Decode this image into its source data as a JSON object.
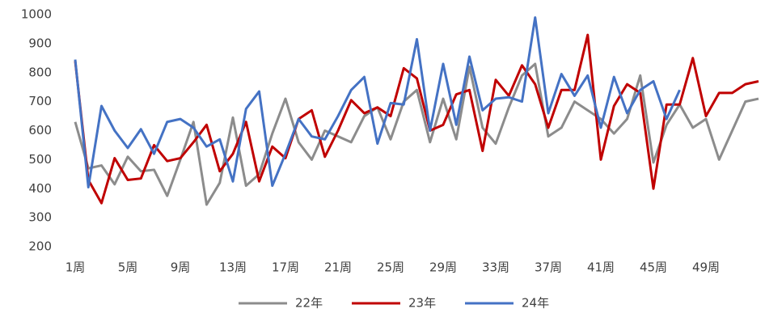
{
  "chart_data": {
    "type": "line",
    "categories": [
      "1周",
      null,
      null,
      null,
      "5周",
      null,
      null,
      null,
      "9周",
      null,
      null,
      null,
      "13周",
      null,
      null,
      null,
      "17周",
      null,
      null,
      null,
      "21周",
      null,
      null,
      null,
      "25周",
      null,
      null,
      null,
      "29周",
      null,
      null,
      null,
      "33周",
      null,
      null,
      null,
      "37周",
      null,
      null,
      null,
      "41周",
      null,
      null,
      null,
      "45周",
      null,
      null,
      null,
      "49周",
      null,
      null,
      null,
      null
    ],
    "series": [
      {
        "name": "22年",
        "color": "#8c8c8c",
        "values": [
          630,
          470,
          480,
          415,
          510,
          460,
          465,
          375,
          500,
          630,
          345,
          420,
          645,
          410,
          450,
          590,
          710,
          560,
          500,
          600,
          580,
          560,
          650,
          680,
          570,
          700,
          740,
          560,
          710,
          570,
          820,
          610,
          555,
          680,
          790,
          830,
          580,
          610,
          700,
          670,
          640,
          590,
          640,
          790,
          490,
          620,
          690,
          610,
          640,
          500,
          600,
          700,
          710
        ]
      },
      {
        "name": "23年",
        "color": "#c00000",
        "values": [
          840,
          430,
          350,
          505,
          430,
          435,
          550,
          495,
          505,
          560,
          620,
          460,
          520,
          630,
          425,
          545,
          505,
          640,
          670,
          510,
          600,
          705,
          660,
          680,
          650,
          815,
          780,
          600,
          620,
          725,
          740,
          530,
          775,
          720,
          825,
          760,
          610,
          740,
          740,
          930,
          500,
          685,
          760,
          730,
          400,
          690,
          690,
          850,
          650,
          730,
          730,
          760,
          770
        ]
      },
      {
        "name": "24年",
        "color": "#4472c4",
        "values": [
          845,
          405,
          685,
          600,
          540,
          605,
          520,
          630,
          640,
          610,
          545,
          570,
          425,
          675,
          735,
          410,
          520,
          640,
          580,
          570,
          650,
          740,
          785,
          555,
          695,
          690,
          915,
          600,
          830,
          620,
          855,
          670,
          710,
          715,
          700,
          990,
          660,
          795,
          720,
          790,
          610,
          785,
          660,
          740,
          770,
          640,
          740,
          null,
          null,
          null,
          null,
          null,
          null
        ]
      }
    ],
    "ylim": [
      200,
      1000
    ],
    "yticks": [
      200,
      300,
      400,
      500,
      600,
      700,
      800,
      900,
      1000
    ],
    "grid": false,
    "legend": "bottom"
  }
}
